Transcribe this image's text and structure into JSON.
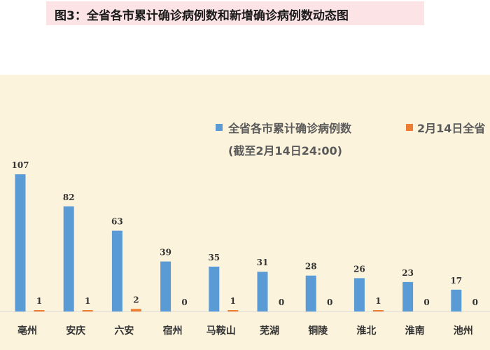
{
  "page": {
    "title": "图3：全省各市累计确诊病例数和新增确诊病例数动态图"
  },
  "chart_data": {
    "type": "bar",
    "categories": [
      "亳州",
      "安庆",
      "六安",
      "宿州",
      "马鞍山",
      "芜湖",
      "铜陵",
      "淮北",
      "淮南",
      "池州"
    ],
    "series": [
      {
        "name": "全省各市累计确诊病例数",
        "note": "(截至2月14日24:00)",
        "color": "#5b9bd5",
        "values": [
          107,
          82,
          63,
          39,
          35,
          31,
          28,
          26,
          23,
          17
        ]
      },
      {
        "name": "2月14日全省",
        "color": "#ed7d31",
        "values": [
          1,
          1,
          2,
          0,
          1,
          0,
          0,
          1,
          0,
          0
        ]
      }
    ],
    "legend": "top-right",
    "grid": false
  }
}
